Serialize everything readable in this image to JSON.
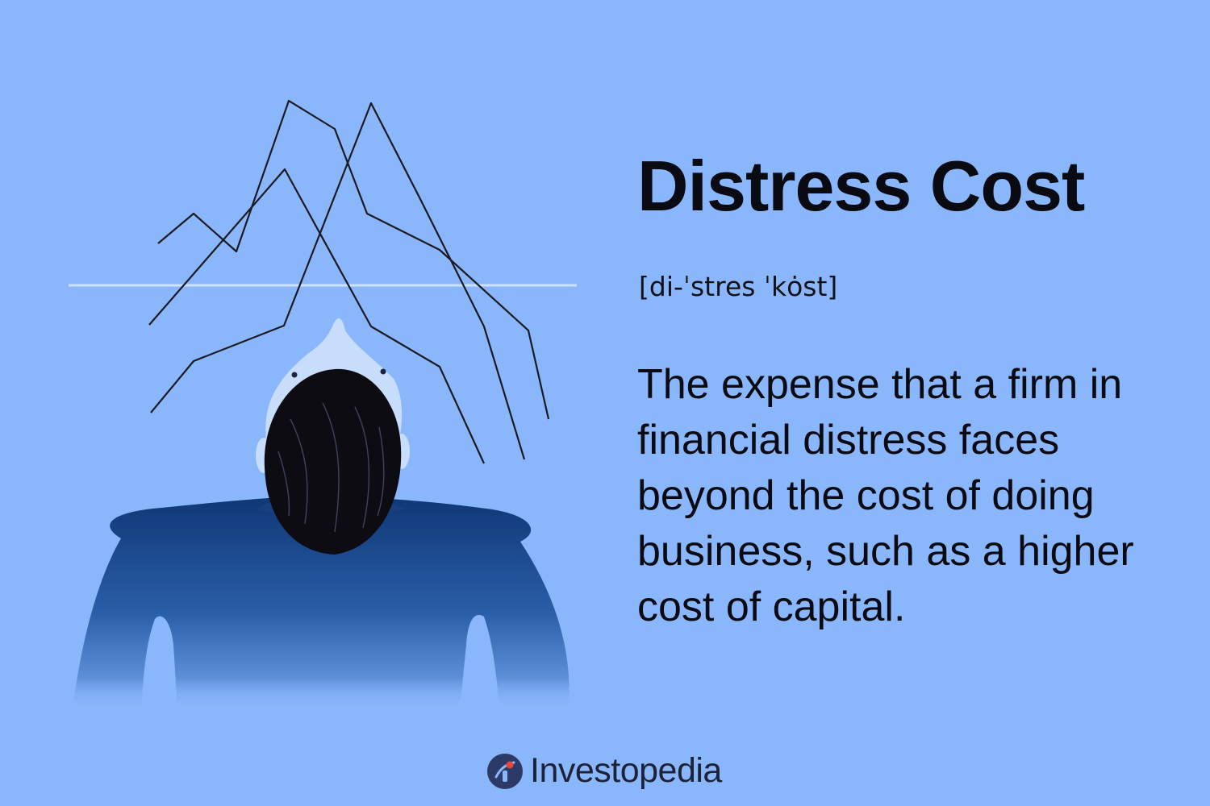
{
  "illustration": {
    "subject": "person-head-in-hands-icon",
    "colors": {
      "background": "#8ab6fb",
      "body": "#14407e",
      "hair": "#0c0c12",
      "skin": "#c8dcfb",
      "chart_lines": "#1a1a22",
      "grid": "#b5d0fd"
    }
  },
  "term": {
    "title": "Distress Cost",
    "pronunciation": "[di-ˈstres ˈkȯst]",
    "definition": "The expense that a firm in financial distress faces beyond the cost of doing business, such as a higher cost of capital."
  },
  "brand": {
    "name": "Investopedia",
    "logo_icon": "investopedia-logo-icon",
    "colors": {
      "logo_ring": "#2b3a66",
      "logo_dot": "#e8453c",
      "text": "#1c2238"
    }
  }
}
